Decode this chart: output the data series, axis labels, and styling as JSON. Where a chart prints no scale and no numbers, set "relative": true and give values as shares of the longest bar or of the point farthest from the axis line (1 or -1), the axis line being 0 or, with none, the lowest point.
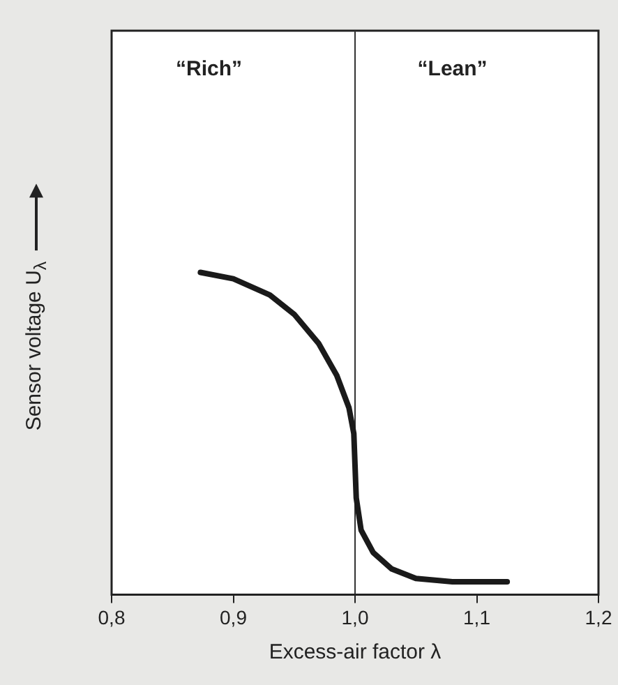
{
  "chart_data": {
    "type": "line",
    "xlabel": "Excess-air factor λ",
    "ylabel": "Sensor voltage U$_{λ}$",
    "relative": true,
    "tick_labels": "x",
    "grid": false,
    "legend": false,
    "marker": "none",
    "line_style": "solid",
    "xlim": [
      0.8,
      1.2
    ],
    "xticks": [
      {
        "value": 0.8,
        "label": "0,8"
      },
      {
        "value": 0.9,
        "label": "0,9"
      },
      {
        "value": 1.0,
        "label": "1,0"
      },
      {
        "value": 1.1,
        "label": "1,1"
      },
      {
        "value": 1.2,
        "label": "1,2"
      }
    ],
    "annotations": [
      "“Rich”",
      "“Lean”"
    ],
    "ref_lines": [
      {
        "axis": "x",
        "value": 1.0,
        "color": "#333333"
      }
    ],
    "series": [
      {
        "color": "#1a1a1a",
        "x": [
          0.873,
          0.9,
          0.93,
          0.95,
          0.97,
          0.985,
          0.995,
          0.999,
          1.0,
          1.001,
          1.005,
          1.015,
          1.03,
          1.05,
          1.08,
          1.125
        ],
        "values": [
          1,
          0.98,
          0.93,
          0.87,
          0.78,
          0.68,
          0.58,
          0.5,
          0.4,
          0.3,
          0.2,
          0.13,
          0.08,
          0.05,
          0.04,
          0.04
        ]
      }
    ]
  }
}
